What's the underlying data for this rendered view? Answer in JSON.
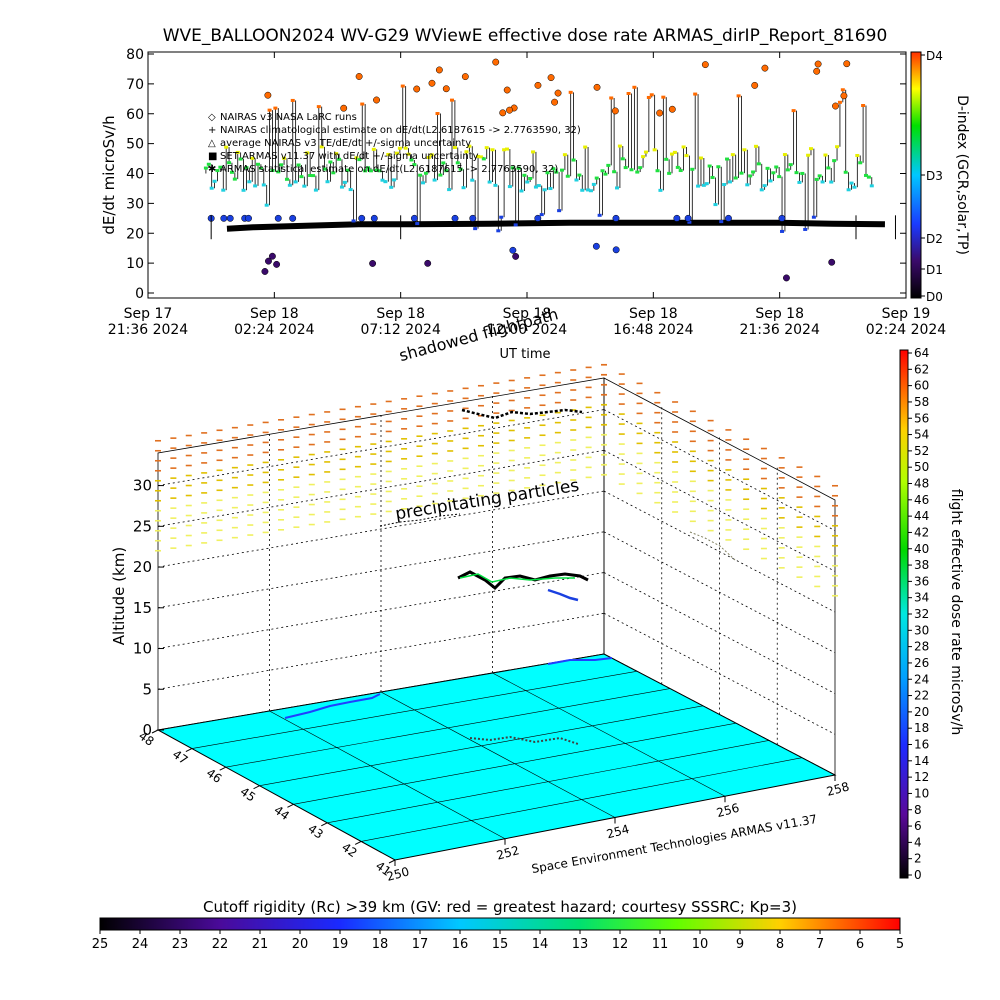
{
  "title": "WVE_BALLOON2024 WV-G29 WViewE effective dose rate ARMAS_dirIP_Report_81690",
  "top_chart": {
    "ylabel": "dE/dt microSv/h",
    "xlabel": "UT time",
    "y_ticks": [
      "0",
      "10",
      "20",
      "30",
      "40",
      "50",
      "60",
      "70",
      "80"
    ],
    "x_ticks": [
      {
        "line1": "Sep 17",
        "line2": "21:36 2024"
      },
      {
        "line1": "Sep 18",
        "line2": "02:24 2024"
      },
      {
        "line1": "Sep 18",
        "line2": "07:12 2024"
      },
      {
        "line1": "Sep 18",
        "line2": "12:00 2024"
      },
      {
        "line1": "Sep 18",
        "line2": "16:48 2024"
      },
      {
        "line1": "Sep 18",
        "line2": "21:36 2024"
      },
      {
        "line1": "Sep 19",
        "line2": "02:24 2024"
      }
    ],
    "legend": [
      "NAIRAS v3 NASA LaRC runs",
      "NAIRAS climatological estimate on dE/dt(L2.6187615 -> 2.7763590, 32)",
      "average NAIRAS v3 TE/dE/dt +/-sigma uncertainty",
      "SET ARMAS v11.37 with dE/dt +/-sigma uncertainty",
      "ARMAS statistical estimate on dE/dt(L2.6187615 -> 2.7763590, 32)"
    ],
    "dindex_label": "D-index (GCR,solar,TP)",
    "dindex_ticks": [
      "D4",
      "D3",
      "D2",
      "D1",
      "D0"
    ]
  },
  "chart_data": [
    {
      "type": "scatter",
      "title": "WVE_BALLOON2024 WV-G29 WViewE effective dose rate ARMAS_dirIP_Report_81690",
      "xlabel": "UT time",
      "ylabel": "dE/dt microSv/h",
      "ylim": [
        0,
        80
      ],
      "x_range": [
        "Sep 17 21:36 2024",
        "Sep 19 02:24 2024"
      ],
      "series": [
        {
          "name": "SET ARMAS v11.37 with dE/dt +/-sigma uncertainty",
          "x_hours": [
            3.0,
            4.0,
            6.0,
            8.0,
            10.0,
            13.0,
            16.0,
            20.0,
            24.0,
            26.0,
            28.0
          ],
          "values": [
            21.5,
            22.0,
            22.5,
            23.0,
            23.0,
            23.2,
            23.5,
            23.5,
            23.5,
            23.2,
            23.0
          ]
        },
        {
          "name": "NAIRAS v3 NASA LaRC runs",
          "x_hours": [
            4.0,
            8.0,
            12.0,
            16.0,
            20.0,
            24.0,
            27.5
          ],
          "values": [
            33.0,
            41.0,
            50.0,
            42.0,
            50.0,
            43.0,
            60.0
          ]
        }
      ],
      "grid": false,
      "legend_position": "top-left"
    },
    {
      "type": "scatter",
      "title": "",
      "xlabel": "",
      "ylabel": "Altitude (km)",
      "z_ticks": [
        0,
        5,
        10,
        15,
        20,
        25,
        30
      ],
      "lat_ticks": [
        41,
        42,
        43,
        44,
        45,
        46,
        47,
        48
      ],
      "lon_ticks": [
        250,
        252,
        254,
        256,
        258
      ],
      "annotations": [
        "precipitating particles",
        "shadowed flightpath"
      ],
      "colorbar_label": "flight effective dose rate microSv/h",
      "colorbar_range": [
        0,
        64
      ]
    }
  ],
  "three_d": {
    "ylabel": "Altitude (km)",
    "z_ticks": [
      "0",
      "5",
      "10",
      "15",
      "20",
      "25",
      "30"
    ],
    "lat_ticks": [
      "41",
      "42",
      "43",
      "44",
      "45",
      "46",
      "47",
      "48"
    ],
    "lon_ticks": [
      "250",
      "252",
      "254",
      "256",
      "258"
    ],
    "annot_particles": "precipitating particles",
    "annot_shadow": "shadowed flightpath",
    "credit": "Space Environment Technologies ARMAS v11.37",
    "dose_label": "flight effective dose rate microSv/h",
    "dose_ticks": [
      "0",
      "2",
      "4",
      "6",
      "8",
      "10",
      "12",
      "14",
      "16",
      "18",
      "20",
      "22",
      "24",
      "26",
      "28",
      "30",
      "32",
      "34",
      "36",
      "38",
      "40",
      "42",
      "44",
      "46",
      "48",
      "50",
      "52",
      "54",
      "56",
      "58",
      "60",
      "62",
      "64"
    ]
  },
  "cutoff": {
    "label": "Cutoff rigidity (Rc) >39 km (GV: red = greatest hazard; courtesy SSSRC; Kp=3)",
    "ticks": [
      "25",
      "24",
      "23",
      "22",
      "21",
      "20",
      "19",
      "18",
      "17",
      "16",
      "15",
      "14",
      "13",
      "12",
      "11",
      "10",
      "9",
      "8",
      "7",
      "6",
      "5"
    ]
  },
  "colors": {
    "ground": "#00ffff",
    "armas_line": "#000000",
    "d4": "#ff3b00",
    "d0": "#000000"
  }
}
